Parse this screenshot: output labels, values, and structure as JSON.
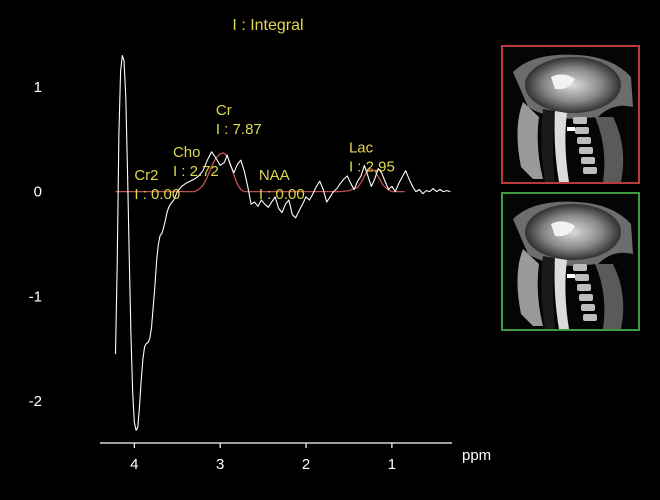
{
  "chart_data": {
    "type": "line",
    "title": "I : Integral",
    "xlabel": "ppm",
    "ylabel": "",
    "x_reversed": true,
    "xlim": [
      4.4,
      0.3
    ],
    "ylim": [
      -2.4,
      1.4
    ],
    "x_ticks": [
      4,
      3,
      2,
      1
    ],
    "y_ticks": [
      1,
      0,
      -1,
      -2
    ],
    "grid": false,
    "legend": "none",
    "spectrum_color": "#ffffff",
    "fit_color": "#c0504d",
    "label_color": "#e0d84a",
    "spectrum": {
      "x": [
        4.22,
        4.2,
        4.18,
        4.16,
        4.14,
        4.12,
        4.1,
        4.08,
        4.06,
        4.04,
        4.02,
        4.0,
        3.98,
        3.96,
        3.94,
        3.92,
        3.9,
        3.88,
        3.86,
        3.84,
        3.82,
        3.8,
        3.78,
        3.76,
        3.74,
        3.72,
        3.7,
        3.68,
        3.66,
        3.64,
        3.62,
        3.6,
        3.58,
        3.56,
        3.54,
        3.52,
        3.5,
        3.45,
        3.4,
        3.35,
        3.3,
        3.25,
        3.2,
        3.15,
        3.1,
        3.05,
        3.0,
        2.95,
        2.92,
        2.88,
        2.84,
        2.8,
        2.76,
        2.72,
        2.68,
        2.64,
        2.6,
        2.56,
        2.52,
        2.48,
        2.44,
        2.4,
        2.36,
        2.32,
        2.28,
        2.24,
        2.2,
        2.16,
        2.12,
        2.08,
        2.04,
        2.0,
        1.96,
        1.92,
        1.88,
        1.84,
        1.8,
        1.76,
        1.72,
        1.68,
        1.64,
        1.6,
        1.56,
        1.52,
        1.48,
        1.44,
        1.4,
        1.36,
        1.32,
        1.28,
        1.24,
        1.2,
        1.16,
        1.12,
        1.08,
        1.04,
        1.0,
        0.96,
        0.92,
        0.88,
        0.84,
        0.8,
        0.76,
        0.72,
        0.68,
        0.64,
        0.6,
        0.56,
        0.52,
        0.48,
        0.44,
        0.4,
        0.36,
        0.32
      ],
      "y": [
        -1.55,
        -0.7,
        0.55,
        1.15,
        1.3,
        1.25,
        0.9,
        0.2,
        -0.6,
        -1.35,
        -1.9,
        -2.2,
        -2.28,
        -2.25,
        -2.05,
        -1.8,
        -1.6,
        -1.48,
        -1.45,
        -1.44,
        -1.4,
        -1.3,
        -1.1,
        -0.9,
        -0.65,
        -0.5,
        -0.42,
        -0.4,
        -0.35,
        -0.28,
        -0.2,
        -0.15,
        -0.12,
        -0.1,
        -0.08,
        -0.04,
        0.0,
        0.05,
        0.08,
        0.1,
        0.12,
        0.15,
        0.2,
        0.3,
        0.38,
        0.32,
        0.25,
        0.28,
        0.35,
        0.25,
        0.18,
        0.26,
        0.3,
        0.2,
        0.05,
        -0.12,
        -0.1,
        -0.14,
        -0.08,
        -0.12,
        -0.15,
        -0.1,
        -0.05,
        -0.16,
        -0.2,
        -0.12,
        -0.08,
        -0.22,
        -0.25,
        -0.18,
        -0.12,
        -0.05,
        -0.08,
        -0.02,
        0.05,
        0.1,
        0.02,
        -0.1,
        -0.05,
        0.0,
        0.03,
        0.08,
        0.12,
        0.15,
        0.08,
        0.02,
        0.1,
        0.15,
        0.25,
        0.15,
        0.05,
        0.12,
        0.22,
        0.18,
        0.1,
        0.02,
        0.05,
        0.0,
        0.08,
        0.14,
        0.2,
        0.12,
        0.05,
        0.0,
        0.02,
        -0.02,
        0.01,
        0.0,
        0.03,
        0.0,
        0.02,
        0.0,
        0.01,
        0.0
      ]
    },
    "fit": {
      "x": [
        4.22,
        4.05,
        3.9,
        3.75,
        3.6,
        3.5,
        3.4,
        3.3,
        3.25,
        3.2,
        3.15,
        3.1,
        3.05,
        3.0,
        2.96,
        2.92,
        2.88,
        2.84,
        2.8,
        2.76,
        2.72,
        2.68,
        2.64,
        2.6,
        2.55,
        2.5,
        2.45,
        2.4,
        2.35,
        2.3,
        2.2,
        2.1,
        2.0,
        1.9,
        1.8,
        1.7,
        1.6,
        1.5,
        1.4,
        1.35,
        1.3,
        1.25,
        1.2,
        1.15,
        1.1,
        1.05,
        1.0,
        0.95,
        0.9,
        0.85
      ],
      "y": [
        0.0,
        0.0,
        0.0,
        0.0,
        0.0,
        0.0,
        0.0,
        0.0,
        0.02,
        0.06,
        0.14,
        0.24,
        0.32,
        0.36,
        0.37,
        0.34,
        0.26,
        0.16,
        0.07,
        0.02,
        0.0,
        0.0,
        0.0,
        0.0,
        0.0,
        0.0,
        0.0,
        0.0,
        0.0,
        0.0,
        0.0,
        0.0,
        0.0,
        0.0,
        0.0,
        0.0,
        0.0,
        0.01,
        0.04,
        0.1,
        0.18,
        0.22,
        0.2,
        0.13,
        0.06,
        0.02,
        0.0,
        0.0,
        0.0,
        0.0
      ]
    },
    "peaks": [
      {
        "name": "Cr2",
        "integral": "I : 0.00",
        "ppm": 4.0,
        "level": -0.07
      },
      {
        "name": "Cho",
        "integral": "I : 2.72",
        "ppm": 3.55,
        "level": 0.15
      },
      {
        "name": "Cr",
        "integral": "I : 7.87",
        "ppm": 3.05,
        "level": 0.55
      },
      {
        "name": "NAA",
        "integral": "I : 0.00",
        "ppm": 2.55,
        "level": -0.07
      },
      {
        "name": "Lac",
        "integral": "I : 2.95",
        "ppm": 1.5,
        "level": 0.19
      }
    ]
  },
  "thumbnails": [
    {
      "border_color": "#b83a3a",
      "state": "selected"
    },
    {
      "border_color": "#3f9a3f",
      "state": "reference"
    }
  ]
}
